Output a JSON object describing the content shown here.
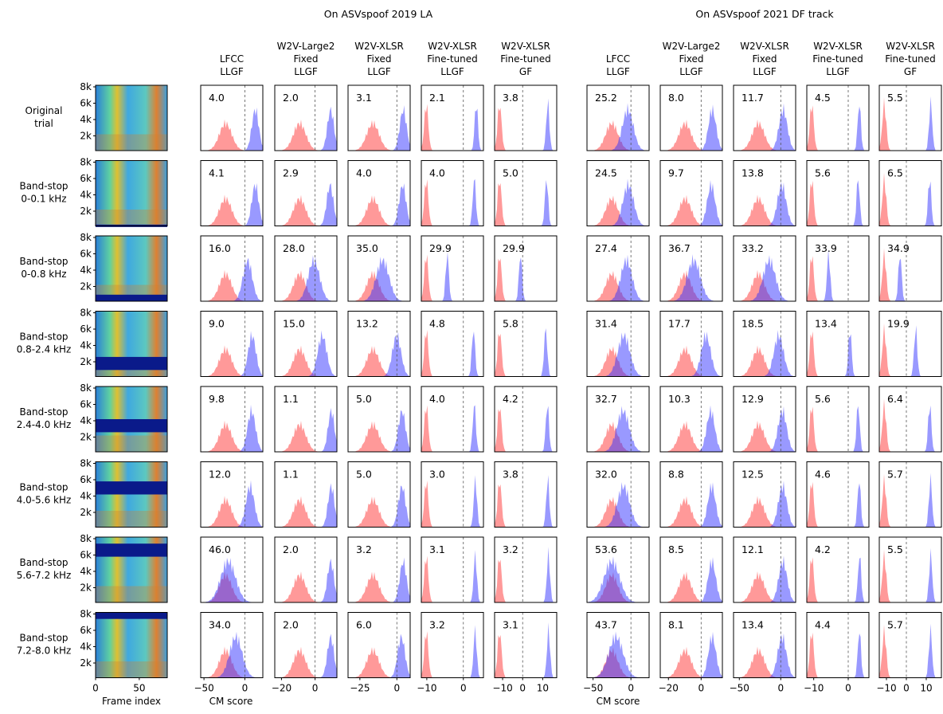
{
  "groups": [
    {
      "title": "On ASVspoof 2019 LA",
      "systems": [
        [
          "LFCC",
          "LLGF"
        ],
        [
          "W2V-Large2",
          "Fixed",
          "LLGF"
        ],
        [
          "W2V-XLSR",
          "Fixed",
          "LLGF"
        ],
        [
          "W2V-XLSR",
          "Fine-tuned",
          "LLGF"
        ],
        [
          "W2V-XLSR",
          "Fine-tuned",
          "GF"
        ]
      ],
      "xlims": [
        [
          -54,
          22
        ],
        [
          -24,
          13
        ],
        [
          -33,
          9
        ],
        [
          -11.5,
          5.5
        ],
        [
          -14,
          17
        ]
      ],
      "xticks": [
        [
          {
            "value": -50,
            "label": "−50"
          },
          0
        ],
        [
          {
            "value": -20,
            "label": "−20"
          },
          0
        ],
        [
          {
            "value": -25,
            "label": "−25"
          },
          0
        ],
        [
          {
            "value": -10,
            "label": "−10"
          },
          0
        ],
        [
          {
            "value": -10,
            "label": "−10"
          },
          0,
          10
        ]
      ]
    },
    {
      "title": "On ASVspoof 2021 DF track",
      "systems": [
        [
          "LFCC",
          "LLGF"
        ],
        [
          "W2V-Large2",
          "Fixed",
          "LLGF"
        ],
        [
          "W2V-XLSR",
          "Fixed",
          "LLGF"
        ],
        [
          "W2V-XLSR",
          "Fine-tuned",
          "LLGF"
        ],
        [
          "W2V-XLSR",
          "Fine-tuned",
          "GF"
        ]
      ],
      "xlims": [
        [
          -58,
          24
        ],
        [
          -25,
          13
        ],
        [
          -57,
          18
        ],
        [
          -12,
          6
        ],
        [
          -13.6,
          17.6
        ]
      ],
      "xticks": [
        [
          {
            "value": -50,
            "label": "−50"
          },
          0
        ],
        [
          {
            "value": -20,
            "label": "−20"
          },
          0
        ],
        [
          {
            "value": -50,
            "label": "−50"
          },
          0
        ],
        [
          {
            "value": -10,
            "label": "−10"
          },
          0
        ],
        [
          {
            "value": -10,
            "label": "−10"
          },
          0,
          10
        ]
      ]
    }
  ],
  "rows": [
    {
      "label": [
        "Original",
        "trial"
      ],
      "eer": [
        [
          "4.0",
          "2.0",
          "3.1",
          "2.1",
          "3.8"
        ],
        [
          "25.2",
          "8.0",
          "11.7",
          "4.5",
          "5.5"
        ]
      ]
    },
    {
      "label": [
        "Band-stop",
        "0-0.1 kHz"
      ],
      "eer": [
        [
          "4.1",
          "2.9",
          "4.0",
          "4.0",
          "5.0"
        ],
        [
          "24.5",
          "9.7",
          "13.8",
          "5.6",
          "6.5"
        ]
      ]
    },
    {
      "label": [
        "Band-stop",
        "0-0.8 kHz"
      ],
      "eer": [
        [
          "16.0",
          "28.0",
          "35.0",
          "29.9",
          "29.9"
        ],
        [
          "27.4",
          "36.7",
          "33.2",
          "33.9",
          "34.9"
        ]
      ]
    },
    {
      "label": [
        "Band-stop",
        "0.8-2.4 kHz"
      ],
      "eer": [
        [
          "9.0",
          "15.0",
          "13.2",
          "4.8",
          "5.8"
        ],
        [
          "31.4",
          "17.7",
          "18.5",
          "13.4",
          "19.9"
        ]
      ]
    },
    {
      "label": [
        "Band-stop",
        "2.4-4.0 kHz"
      ],
      "eer": [
        [
          "9.8",
          "1.1",
          "5.0",
          "4.0",
          "4.2"
        ],
        [
          "32.7",
          "10.3",
          "12.9",
          "5.6",
          "6.4"
        ]
      ]
    },
    {
      "label": [
        "Band-stop",
        "4.0-5.6 kHz"
      ],
      "eer": [
        [
          "12.0",
          "1.1",
          "5.0",
          "3.0",
          "3.8"
        ],
        [
          "32.0",
          "8.8",
          "12.5",
          "4.6",
          "5.7"
        ]
      ]
    },
    {
      "label": [
        "Band-stop",
        "5.6-7.2 kHz"
      ],
      "eer": [
        [
          "46.0",
          "2.0",
          "3.2",
          "3.1",
          "3.2"
        ],
        [
          "53.6",
          "8.5",
          "12.1",
          "4.2",
          "5.5"
        ]
      ]
    },
    {
      "label": [
        "Band-stop",
        "7.2-8.0 kHz"
      ],
      "eer": [
        [
          "34.0",
          "2.0",
          "6.0",
          "3.2",
          "3.1"
        ],
        [
          "43.7",
          "8.1",
          "13.4",
          "4.4",
          "5.7"
        ]
      ]
    }
  ],
  "spectrogram": {
    "yticks": [
      "8k",
      "6k",
      "4k",
      "2k"
    ],
    "xticks": [
      0,
      50
    ],
    "xlabel": "Frame index"
  },
  "xlabel": "CM score"
}
